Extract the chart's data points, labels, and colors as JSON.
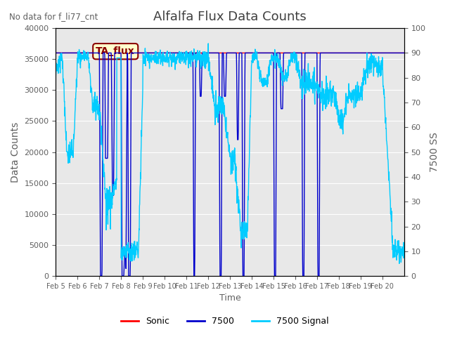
{
  "title": "Alfalfa Flux Data Counts",
  "no_data_label": "No data for f_li77_cnt",
  "xlabel": "Time",
  "ylabel_left": "Data Counts",
  "ylabel_right": "7500 SS",
  "ylim_left": [
    0,
    40000
  ],
  "ylim_right": [
    0,
    100
  ],
  "yticks_left": [
    0,
    5000,
    10000,
    15000,
    20000,
    25000,
    30000,
    35000,
    40000
  ],
  "yticks_right": [
    0,
    10,
    20,
    30,
    40,
    50,
    60,
    70,
    80,
    90,
    100
  ],
  "xtick_labels": [
    "Feb 5",
    "Feb 6",
    "Feb 7",
    "Feb 8",
    "Feb 9",
    "Feb 10",
    "Feb 11",
    "Feb 12",
    "Feb 13",
    "Feb 14",
    "Feb 15",
    "Feb 16",
    "Feb 17",
    "Feb 18",
    "Feb 19",
    "Feb 20"
  ],
  "legend_labels": [
    "Sonic",
    "7500",
    "7500 Signal"
  ],
  "legend_colors": [
    "#ff0000",
    "#0000cc",
    "#00ccff"
  ],
  "annotation_text": "TA_flux",
  "bg_color": "#e8e8e8",
  "sonic_color": "#ff0000",
  "anemometer_color": "#0000cc",
  "signal_color": "#00ccff",
  "title_color": "#404040",
  "label_color": "#606060"
}
